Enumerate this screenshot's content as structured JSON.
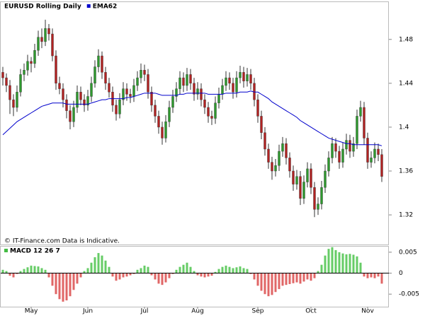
{
  "chart_data": [
    {
      "type": "candlestick",
      "title": "EURUSD Rolling Daily",
      "note": "© IT-Finance.com Data is Indicative.",
      "up_color": "#2e9a2e",
      "down_color": "#b22222",
      "wick_color": "#333333",
      "ohlc": [
        [
          1.45,
          1.455,
          1.438,
          1.445
        ],
        [
          1.445,
          1.449,
          1.432,
          1.438
        ],
        [
          1.438,
          1.443,
          1.412,
          1.425
        ],
        [
          1.425,
          1.43,
          1.41,
          1.418
        ],
        [
          1.418,
          1.438,
          1.414,
          1.432
        ],
        [
          1.432,
          1.453,
          1.428,
          1.448
        ],
        [
          1.448,
          1.458,
          1.442,
          1.452
        ],
        [
          1.452,
          1.466,
          1.447,
          1.46
        ],
        [
          1.46,
          1.464,
          1.45,
          1.458
        ],
        [
          1.458,
          1.476,
          1.454,
          1.47
        ],
        [
          1.47,
          1.488,
          1.465,
          1.482
        ],
        [
          1.482,
          1.49,
          1.472,
          1.478
        ],
        [
          1.478,
          1.498,
          1.474,
          1.49
        ],
        [
          1.49,
          1.494,
          1.479,
          1.485
        ],
        [
          1.485,
          1.49,
          1.46,
          1.465
        ],
        [
          1.465,
          1.47,
          1.434,
          1.44
        ],
        [
          1.44,
          1.446,
          1.43,
          1.435
        ],
        [
          1.435,
          1.44,
          1.418,
          1.425
        ],
        [
          1.425,
          1.43,
          1.408,
          1.415
        ],
        [
          1.415,
          1.42,
          1.398,
          1.405
        ],
        [
          1.405,
          1.424,
          1.4,
          1.418
        ],
        [
          1.418,
          1.438,
          1.413,
          1.432
        ],
        [
          1.432,
          1.437,
          1.42,
          1.425
        ],
        [
          1.425,
          1.43,
          1.414,
          1.42
        ],
        [
          1.42,
          1.434,
          1.415,
          1.428
        ],
        [
          1.428,
          1.446,
          1.423,
          1.44
        ],
        [
          1.44,
          1.461,
          1.436,
          1.455
        ],
        [
          1.455,
          1.471,
          1.45,
          1.465
        ],
        [
          1.465,
          1.469,
          1.444,
          1.45
        ],
        [
          1.45,
          1.455,
          1.434,
          1.44
        ],
        [
          1.44,
          1.445,
          1.427,
          1.432
        ],
        [
          1.432,
          1.437,
          1.414,
          1.42
        ],
        [
          1.42,
          1.425,
          1.406,
          1.412
        ],
        [
          1.412,
          1.431,
          1.408,
          1.425
        ],
        [
          1.425,
          1.441,
          1.42,
          1.435
        ],
        [
          1.435,
          1.44,
          1.424,
          1.43
        ],
        [
          1.43,
          1.435,
          1.422,
          1.428
        ],
        [
          1.428,
          1.444,
          1.423,
          1.438
        ],
        [
          1.438,
          1.451,
          1.433,
          1.445
        ],
        [
          1.445,
          1.458,
          1.44,
          1.452
        ],
        [
          1.452,
          1.457,
          1.442,
          1.448
        ],
        [
          1.448,
          1.453,
          1.426,
          1.432
        ],
        [
          1.432,
          1.437,
          1.414,
          1.42
        ],
        [
          1.42,
          1.425,
          1.404,
          1.41
        ],
        [
          1.41,
          1.415,
          1.394,
          1.4
        ],
        [
          1.4,
          1.405,
          1.384,
          1.39
        ],
        [
          1.39,
          1.411,
          1.386,
          1.405
        ],
        [
          1.405,
          1.424,
          1.4,
          1.418
        ],
        [
          1.418,
          1.434,
          1.413,
          1.428
        ],
        [
          1.428,
          1.441,
          1.423,
          1.435
        ],
        [
          1.435,
          1.451,
          1.43,
          1.445
        ],
        [
          1.445,
          1.45,
          1.432,
          1.438
        ],
        [
          1.438,
          1.454,
          1.433,
          1.448
        ],
        [
          1.448,
          1.453,
          1.434,
          1.44
        ],
        [
          1.44,
          1.445,
          1.424,
          1.43
        ],
        [
          1.43,
          1.441,
          1.425,
          1.435
        ],
        [
          1.435,
          1.44,
          1.419,
          1.425
        ],
        [
          1.425,
          1.43,
          1.412,
          1.418
        ],
        [
          1.418,
          1.423,
          1.404,
          1.41
        ],
        [
          1.41,
          1.415,
          1.402,
          1.408
        ],
        [
          1.408,
          1.428,
          1.403,
          1.422
        ],
        [
          1.422,
          1.436,
          1.417,
          1.43
        ],
        [
          1.43,
          1.444,
          1.425,
          1.438
        ],
        [
          1.438,
          1.451,
          1.433,
          1.445
        ],
        [
          1.445,
          1.45,
          1.434,
          1.44
        ],
        [
          1.44,
          1.445,
          1.426,
          1.432
        ],
        [
          1.432,
          1.451,
          1.427,
          1.445
        ],
        [
          1.445,
          1.456,
          1.44,
          1.45
        ],
        [
          1.45,
          1.455,
          1.436,
          1.442
        ],
        [
          1.442,
          1.454,
          1.437,
          1.448
        ],
        [
          1.448,
          1.453,
          1.434,
          1.44
        ],
        [
          1.44,
          1.445,
          1.419,
          1.425
        ],
        [
          1.425,
          1.43,
          1.404,
          1.41
        ],
        [
          1.41,
          1.415,
          1.389,
          1.395
        ],
        [
          1.395,
          1.4,
          1.374,
          1.38
        ],
        [
          1.38,
          1.385,
          1.362,
          1.368
        ],
        [
          1.368,
          1.373,
          1.352,
          1.36
        ],
        [
          1.36,
          1.371,
          1.355,
          1.365
        ],
        [
          1.365,
          1.384,
          1.36,
          1.378
        ],
        [
          1.378,
          1.391,
          1.373,
          1.385
        ],
        [
          1.385,
          1.39,
          1.366,
          1.372
        ],
        [
          1.372,
          1.377,
          1.354,
          1.36
        ],
        [
          1.36,
          1.365,
          1.342,
          1.348
        ],
        [
          1.348,
          1.361,
          1.343,
          1.355
        ],
        [
          1.355,
          1.36,
          1.329,
          1.335
        ],
        [
          1.335,
          1.356,
          1.33,
          1.35
        ],
        [
          1.35,
          1.368,
          1.345,
          1.362
        ],
        [
          1.362,
          1.367,
          1.339,
          1.345
        ],
        [
          1.345,
          1.35,
          1.318,
          1.325
        ],
        [
          1.325,
          1.336,
          1.32,
          1.33
        ],
        [
          1.33,
          1.351,
          1.325,
          1.345
        ],
        [
          1.345,
          1.366,
          1.34,
          1.36
        ],
        [
          1.36,
          1.378,
          1.355,
          1.372
        ],
        [
          1.372,
          1.391,
          1.367,
          1.385
        ],
        [
          1.385,
          1.39,
          1.372,
          1.378
        ],
        [
          1.378,
          1.383,
          1.362,
          1.368
        ],
        [
          1.368,
          1.386,
          1.363,
          1.38
        ],
        [
          1.38,
          1.394,
          1.375,
          1.388
        ],
        [
          1.388,
          1.393,
          1.372,
          1.378
        ],
        [
          1.378,
          1.391,
          1.373,
          1.385
        ],
        [
          1.385,
          1.416,
          1.38,
          1.41
        ],
        [
          1.41,
          1.424,
          1.405,
          1.418
        ],
        [
          1.418,
          1.423,
          1.384,
          1.39
        ],
        [
          1.39,
          1.395,
          1.362,
          1.368
        ],
        [
          1.368,
          1.378,
          1.363,
          1.372
        ],
        [
          1.372,
          1.386,
          1.367,
          1.38
        ],
        [
          1.38,
          1.385,
          1.369,
          1.375
        ],
        [
          1.375,
          1.38,
          1.35,
          1.355
        ]
      ],
      "series": [
        {
          "name": "EMA62",
          "color": "#0000cc",
          "values": [
            1.393,
            1.396,
            1.399,
            1.402,
            1.405,
            1.407,
            1.409,
            1.411,
            1.413,
            1.415,
            1.417,
            1.419,
            1.42,
            1.421,
            1.422,
            1.422,
            1.422,
            1.422,
            1.421,
            1.421,
            1.421,
            1.421,
            1.421,
            1.421,
            1.421,
            1.422,
            1.423,
            1.424,
            1.425,
            1.425,
            1.426,
            1.426,
            1.426,
            1.426,
            1.426,
            1.427,
            1.427,
            1.428,
            1.429,
            1.43,
            1.431,
            1.431,
            1.431,
            1.431,
            1.43,
            1.429,
            1.429,
            1.429,
            1.429,
            1.429,
            1.43,
            1.43,
            1.431,
            1.431,
            1.431,
            1.431,
            1.431,
            1.431,
            1.43,
            1.43,
            1.43,
            1.43,
            1.43,
            1.431,
            1.431,
            1.431,
            1.431,
            1.432,
            1.432,
            1.432,
            1.433,
            1.432,
            1.432,
            1.43,
            1.428,
            1.426,
            1.423,
            1.421,
            1.419,
            1.417,
            1.415,
            1.413,
            1.411,
            1.409,
            1.406,
            1.404,
            1.402,
            1.4,
            1.398,
            1.396,
            1.394,
            1.392,
            1.39,
            1.389,
            1.388,
            1.387,
            1.386,
            1.385,
            1.385,
            1.384,
            1.384,
            1.384,
            1.384,
            1.384,
            1.384,
            1.384,
            1.384,
            1.383
          ]
        }
      ],
      "ylim": [
        1.293,
        1.514
      ],
      "yticks": [
        1.32,
        1.36,
        1.4,
        1.44,
        1.48
      ]
    },
    {
      "type": "bar",
      "title": "MACD 12 26 7",
      "legend_color": "#44bb44",
      "up_color": "#66cc66",
      "down_color": "#e06666",
      "categories": [
        null,
        null,
        null,
        null,
        null,
        null,
        null,
        null,
        "May",
        null,
        null,
        null,
        null,
        null,
        null,
        null,
        null,
        null,
        null,
        null,
        null,
        null,
        null,
        null,
        "Jun",
        null,
        null,
        null,
        null,
        null,
        null,
        null,
        null,
        null,
        null,
        null,
        null,
        null,
        null,
        null,
        "Jul",
        null,
        null,
        null,
        null,
        null,
        null,
        null,
        null,
        null,
        null,
        null,
        null,
        null,
        null,
        "Aug",
        null,
        null,
        null,
        null,
        null,
        null,
        null,
        null,
        null,
        null,
        null,
        null,
        null,
        null,
        null,
        null,
        "Sep",
        null,
        null,
        null,
        null,
        null,
        null,
        null,
        null,
        null,
        null,
        null,
        null,
        null,
        null,
        "Oct",
        null,
        null,
        null,
        null,
        null,
        null,
        null,
        null,
        null,
        null,
        null,
        null,
        null,
        null,
        null,
        "Nov",
        null,
        null,
        null,
        null
      ],
      "values": [
        0.0008,
        0.0005,
        -0.0006,
        -0.001,
        -0.0002,
        0.0005,
        0.001,
        0.0014,
        0.0018,
        0.0017,
        0.0016,
        0.0012,
        0.0008,
        -0.001,
        -0.003,
        -0.005,
        -0.0062,
        -0.0068,
        -0.0065,
        -0.0055,
        -0.004,
        -0.0025,
        -0.001,
        0.0005,
        0.0012,
        0.0025,
        0.0038,
        0.0048,
        0.0042,
        0.003,
        0.0015,
        -0.0008,
        -0.0018,
        -0.0015,
        -0.001,
        -0.0008,
        -0.0005,
        -0.0002,
        0.0008,
        0.0012,
        0.0018,
        0.0015,
        -0.0005,
        -0.0015,
        -0.0025,
        -0.0028,
        -0.0022,
        -0.0012,
        -0.0002,
        0.0008,
        0.0015,
        0.002,
        0.0025,
        0.0015,
        0.0005,
        -0.0005,
        -0.0008,
        -0.001,
        -0.0008,
        -0.0006,
        0.0003,
        0.001,
        0.0015,
        0.0018,
        0.0015,
        0.0012,
        0.0014,
        0.0016,
        0.0012,
        0.001,
        -0.0002,
        -0.0015,
        -0.003,
        -0.0042,
        -0.005,
        -0.0055,
        -0.0052,
        -0.0045,
        -0.0038,
        -0.003,
        -0.0028,
        -0.0026,
        -0.0024,
        -0.0022,
        -0.0025,
        -0.002,
        -0.0015,
        -0.0018,
        -0.0012,
        0.0005,
        0.002,
        0.0042,
        0.0058,
        0.0062,
        0.0055,
        0.005,
        0.0047,
        0.0045,
        0.0046,
        0.0044,
        0.004,
        0.0025,
        -0.0008,
        -0.0012,
        -0.001,
        -0.0012,
        -0.0008,
        -0.0025
      ],
      "ylim": [
        -0.008,
        0.00633
      ],
      "yticks": [
        0.005,
        0,
        -0.005
      ],
      "zero_line": true
    }
  ]
}
